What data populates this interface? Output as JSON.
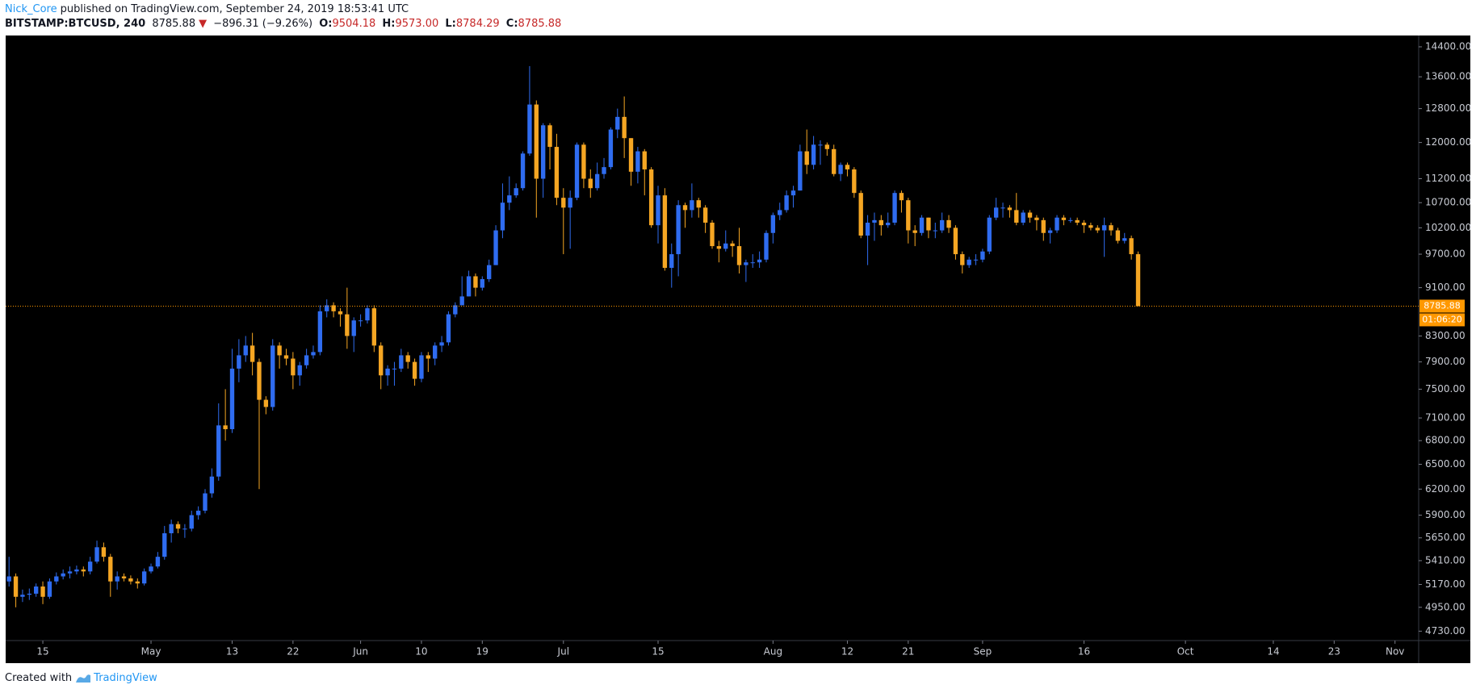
{
  "header": {
    "author": "Nick_Core",
    "published": "published on TradingView.com, September 24, 2019 18:53:41 UTC",
    "symbol": "BITSTAMP:BTCUSD, 240",
    "last": "8785.88",
    "arrow": "▼",
    "change": "−896.31 (−9.26%)",
    "o_label": "O:",
    "o": "9504.18",
    "h_label": "H:",
    "h": "9573.00",
    "l_label": "L:",
    "l": "8784.29",
    "c_label": "C:",
    "c": "8785.88"
  },
  "footer": {
    "created": "Created with",
    "brand": "TradingView"
  },
  "chart_data": {
    "type": "candlestick",
    "categories": [
      null,
      null,
      null,
      null,
      null,
      "15",
      null,
      null,
      null,
      null,
      null,
      null,
      null,
      null,
      null,
      null,
      null,
      null,
      null,
      null,
      null,
      "May",
      null,
      null,
      null,
      null,
      null,
      null,
      null,
      null,
      null,
      null,
      null,
      "13",
      null,
      null,
      null,
      null,
      null,
      null,
      null,
      null,
      "22",
      null,
      null,
      null,
      null,
      null,
      null,
      null,
      null,
      null,
      "Jun",
      null,
      null,
      null,
      null,
      null,
      null,
      null,
      null,
      "10",
      null,
      null,
      null,
      null,
      null,
      null,
      null,
      null,
      "19",
      null,
      null,
      null,
      null,
      null,
      null,
      null,
      null,
      null,
      null,
      null,
      "Jul",
      null,
      null,
      null,
      null,
      null,
      null,
      null,
      null,
      null,
      null,
      null,
      null,
      null,
      "15",
      null,
      null,
      null,
      null,
      null,
      null,
      null,
      null,
      null,
      null,
      null,
      null,
      null,
      null,
      null,
      null,
      "Aug",
      null,
      null,
      null,
      null,
      null,
      null,
      null,
      null,
      null,
      null,
      "12",
      null,
      null,
      null,
      null,
      null,
      null,
      null,
      null,
      "21",
      null,
      null,
      null,
      null,
      null,
      null,
      null,
      null,
      null,
      null,
      "Sep",
      null,
      null,
      null,
      null,
      null,
      null,
      null,
      null,
      null,
      null,
      null,
      null,
      null,
      null,
      "16",
      null,
      null,
      null,
      null,
      null,
      null,
      null,
      null,
      null,
      null,
      null,
      null,
      null,
      null,
      "Oct",
      null,
      null,
      null,
      null,
      null,
      null,
      null,
      null,
      null,
      null,
      null,
      null,
      "14",
      null,
      null,
      null,
      null,
      null,
      null,
      null,
      null,
      "23",
      null,
      null,
      null,
      null,
      null,
      null,
      null,
      null,
      "Nov",
      null,
      null,
      null
    ],
    "series": [
      {
        "open": [
          5200,
          5250,
          5050,
          5070,
          5080,
          5150,
          5050,
          5200,
          5250,
          5280,
          5300,
          5320,
          5300,
          5400,
          5550,
          5450,
          5200,
          5250,
          5230,
          5200,
          5180,
          5300,
          5350,
          5450,
          5700,
          5800,
          5750,
          5750,
          5900,
          5950,
          6150,
          6350,
          7000,
          6950,
          7800,
          8000,
          8150,
          7900,
          7350,
          7250,
          8150,
          8000,
          7950,
          7700,
          7850,
          8000,
          8050,
          8700,
          8800,
          8700,
          8650,
          8300,
          8550,
          8550,
          8750,
          8150,
          7700,
          7800,
          7800,
          8000,
          7900,
          7650,
          8000,
          7950,
          8150,
          8200,
          8650,
          8800,
          8950,
          9300,
          9100,
          9250,
          9500,
          10150,
          10700,
          10850,
          11000,
          11750,
          12900,
          11200,
          12400,
          11900,
          10800,
          10600,
          10800,
          11950,
          11200,
          11000,
          11300,
          11450,
          12300,
          12600,
          12100,
          11350,
          11800,
          11400,
          10250,
          10850,
          9450,
          9700,
          10650,
          10550,
          10750,
          10600,
          10300,
          9850,
          9800,
          9900,
          9850,
          9500,
          9550,
          9550,
          9600,
          10100,
          10450,
          10550,
          10850,
          10950,
          11800,
          11500,
          11950,
          11950,
          11850,
          11300,
          11500,
          11400,
          10900,
          10050,
          10300,
          10350,
          10250,
          10300,
          10900,
          10750,
          10150,
          10100,
          10400,
          10150,
          10150,
          10350,
          10200,
          9700,
          9500,
          9600,
          9600,
          9750,
          10400,
          10600,
          10600,
          10550,
          10300,
          10500,
          10400,
          10350,
          10100,
          10150,
          10400,
          10350,
          10350,
          10300,
          10250,
          10200,
          10150,
          10250,
          10150,
          9950,
          10000,
          9700,
          null,
          null,
          null,
          null,
          null,
          null,
          null,
          null,
          null,
          null,
          null,
          null,
          null,
          null,
          null,
          null,
          null,
          null,
          null,
          null,
          null,
          null,
          null,
          null,
          null,
          null,
          null,
          null,
          null,
          null,
          null,
          null,
          null,
          null,
          null,
          null,
          null,
          null,
          null,
          null,
          null
        ],
        "high": [
          5450,
          5280,
          5120,
          5130,
          5180,
          5200,
          5230,
          5290,
          5320,
          5350,
          5360,
          5350,
          5450,
          5620,
          5600,
          5480,
          5300,
          5280,
          5260,
          5230,
          5330,
          5380,
          5500,
          5780,
          5850,
          5830,
          5800,
          5950,
          6000,
          6200,
          6450,
          7300,
          7500,
          8100,
          8250,
          8300,
          8350,
          7950,
          7400,
          8250,
          8200,
          8100,
          8050,
          7900,
          8100,
          8150,
          8800,
          8900,
          8850,
          8750,
          9100,
          8600,
          8650,
          8800,
          8800,
          8200,
          7850,
          7900,
          8100,
          8050,
          7950,
          8050,
          8050,
          8200,
          8300,
          8700,
          8850,
          9300,
          9400,
          9350,
          9300,
          9600,
          10250,
          11100,
          11250,
          11100,
          11800,
          13880,
          13000,
          12450,
          12450,
          12200,
          11000,
          10950,
          12000,
          12000,
          11400,
          11550,
          11650,
          12350,
          12800,
          13100,
          12100,
          11900,
          11850,
          11450,
          11050,
          11000,
          9900,
          10750,
          10700,
          11100,
          10800,
          10650,
          10350,
          9950,
          10150,
          9950,
          10200,
          9600,
          9700,
          9750,
          10150,
          10500,
          10700,
          10950,
          11050,
          11950,
          12300,
          12150,
          12050,
          12000,
          11950,
          11550,
          11550,
          11450,
          10950,
          10450,
          10500,
          10450,
          10500,
          10950,
          10950,
          10800,
          10250,
          10450,
          10400,
          10300,
          10500,
          10450,
          10250,
          9750,
          9650,
          9700,
          9800,
          10450,
          10800,
          10700,
          10650,
          10900,
          10550,
          10550,
          10450,
          10400,
          10200,
          10450,
          10450,
          10400,
          10400,
          10350,
          10300,
          10250,
          10400,
          10300,
          10200,
          10100,
          10050,
          9750,
          null,
          null,
          null,
          null,
          null,
          null,
          null,
          null,
          null,
          null,
          null,
          null,
          null,
          null,
          null,
          null,
          null,
          null,
          null,
          null,
          null,
          null,
          null,
          null,
          null,
          null,
          null,
          null,
          null,
          null,
          null,
          null,
          null,
          null,
          null,
          null,
          null,
          null,
          null,
          null,
          null
        ],
        "low": [
          5150,
          4950,
          5000,
          5020,
          5050,
          4980,
          5030,
          5170,
          5220,
          5230,
          5270,
          5250,
          5270,
          5380,
          5400,
          5050,
          5120,
          5200,
          5170,
          5130,
          5160,
          5280,
          5330,
          5420,
          5600,
          5700,
          5650,
          5720,
          5850,
          5920,
          6100,
          6300,
          6800,
          6900,
          7600,
          7900,
          7700,
          6200,
          7150,
          7200,
          7800,
          7850,
          7500,
          7550,
          7800,
          7950,
          8000,
          8600,
          8600,
          8450,
          8100,
          8050,
          8450,
          8500,
          8050,
          7500,
          7550,
          7550,
          7750,
          7800,
          7550,
          7600,
          7750,
          7850,
          8050,
          8150,
          8600,
          8800,
          8950,
          8950,
          9050,
          9200,
          9500,
          10000,
          10550,
          10800,
          10950,
          11700,
          10400,
          10800,
          11400,
          10650,
          9700,
          9800,
          10750,
          11000,
          10800,
          10950,
          11200,
          11400,
          12100,
          11650,
          11050,
          11100,
          10850,
          10200,
          9900,
          9400,
          9100,
          9300,
          10200,
          10400,
          10400,
          10100,
          9800,
          9550,
          9750,
          9650,
          9350,
          9200,
          9450,
          9450,
          9550,
          9900,
          10350,
          10500,
          10600,
          10950,
          11300,
          11400,
          11500,
          11700,
          11250,
          11150,
          11250,
          10800,
          10000,
          9500,
          9950,
          10050,
          10200,
          10250,
          10500,
          9900,
          9850,
          10050,
          10000,
          10000,
          10100,
          10100,
          9600,
          9350,
          9450,
          9500,
          9550,
          9700,
          10350,
          10400,
          10400,
          10250,
          10250,
          10300,
          10150,
          9950,
          9900,
          10100,
          10250,
          10300,
          10250,
          10100,
          10150,
          10100,
          9650,
          10050,
          9900,
          9900,
          9600,
          8784.29,
          null,
          null,
          null,
          null,
          null,
          null,
          null,
          null,
          null,
          null,
          null,
          null,
          null,
          null,
          null,
          null,
          null,
          null,
          null,
          null,
          null,
          null,
          null,
          null,
          null,
          null,
          null,
          null,
          null,
          null,
          null,
          null,
          null,
          null,
          null,
          null,
          null,
          null,
          null,
          null,
          null
        ],
        "close": [
          5250,
          5050,
          5070,
          5080,
          5150,
          5050,
          5200,
          5250,
          5280,
          5300,
          5320,
          5300,
          5400,
          5550,
          5450,
          5200,
          5250,
          5230,
          5200,
          5180,
          5300,
          5350,
          5450,
          5700,
          5800,
          5750,
          5750,
          5900,
          5950,
          6150,
          6350,
          7000,
          6950,
          7800,
          8000,
          8150,
          7900,
          7350,
          7250,
          8150,
          8000,
          7950,
          7700,
          7850,
          8000,
          8050,
          8700,
          8800,
          8700,
          8650,
          8300,
          8550,
          8550,
          8750,
          8150,
          7700,
          7800,
          7800,
          8000,
          7900,
          7650,
          8000,
          7950,
          8150,
          8200,
          8650,
          8800,
          8950,
          9300,
          9100,
          9250,
          9500,
          10150,
          10700,
          10850,
          11000,
          11750,
          12900,
          11200,
          12400,
          11900,
          10800,
          10600,
          10800,
          11950,
          11200,
          11000,
          11300,
          11450,
          12300,
          12600,
          12100,
          11350,
          11800,
          11400,
          10250,
          10850,
          9450,
          9700,
          10650,
          10550,
          10750,
          10600,
          10300,
          9850,
          9800,
          9900,
          9850,
          9500,
          9550,
          9550,
          9600,
          10100,
          10450,
          10550,
          10850,
          10950,
          11800,
          11500,
          11950,
          11950,
          11850,
          11300,
          11500,
          11400,
          10900,
          10050,
          10300,
          10350,
          10250,
          10300,
          10900,
          10750,
          10150,
          10100,
          10400,
          10150,
          10150,
          10350,
          10200,
          9700,
          9500,
          9600,
          9600,
          9750,
          10400,
          10600,
          10600,
          10550,
          10300,
          10500,
          10400,
          10350,
          10100,
          10150,
          10400,
          10350,
          10350,
          10300,
          10250,
          10200,
          10150,
          10250,
          10150,
          9950,
          10000,
          9700,
          8785.88,
          null,
          null,
          null,
          null,
          null,
          null,
          null,
          null,
          null,
          null,
          null,
          null,
          null,
          null,
          null,
          null,
          null,
          null,
          null,
          null,
          null,
          null,
          null,
          null,
          null,
          null,
          null,
          null,
          null,
          null,
          null,
          null,
          null,
          null,
          null,
          null,
          null,
          null,
          null,
          null,
          null
        ]
      }
    ],
    "up_color": "#2f6cf0",
    "down_color": "#f5a623",
    "log_scale": true,
    "grid": false,
    "ylim": [
      4646,
      14713
    ],
    "yticks": [
      {
        "value": 4730,
        "label": "4730.00"
      },
      {
        "value": 4950,
        "label": "4950.00"
      },
      {
        "value": 5170,
        "label": "5170.00"
      },
      {
        "value": 5410,
        "label": "5410.00"
      },
      {
        "value": 5650,
        "label": "5650.00"
      },
      {
        "value": 5900,
        "label": "5900.00"
      },
      {
        "value": 6200,
        "label": "6200.00"
      },
      {
        "value": 6500,
        "label": "6500.00"
      },
      {
        "value": 6800,
        "label": "6800.00"
      },
      {
        "value": 7100,
        "label": "7100.00"
      },
      {
        "value": 7500,
        "label": "7500.00"
      },
      {
        "value": 7900,
        "label": "7900.00"
      },
      {
        "value": 8300,
        "label": "8300.00"
      },
      {
        "value": 9100,
        "label": "9100.00"
      },
      {
        "value": 9700,
        "label": "9700.00"
      },
      {
        "value": 10200,
        "label": "10200.00"
      },
      {
        "value": 10700,
        "label": "10700.00"
      },
      {
        "value": 11200,
        "label": "11200.00"
      },
      {
        "value": 12000,
        "label": "12000.00"
      },
      {
        "value": 12800,
        "label": "12800.00"
      },
      {
        "value": 13600,
        "label": "13600.00"
      },
      {
        "value": 14400,
        "label": "14400.00"
      }
    ],
    "price_line": 8785.88,
    "price_line_color": "#ff9800",
    "countdown": "01:06:20"
  }
}
